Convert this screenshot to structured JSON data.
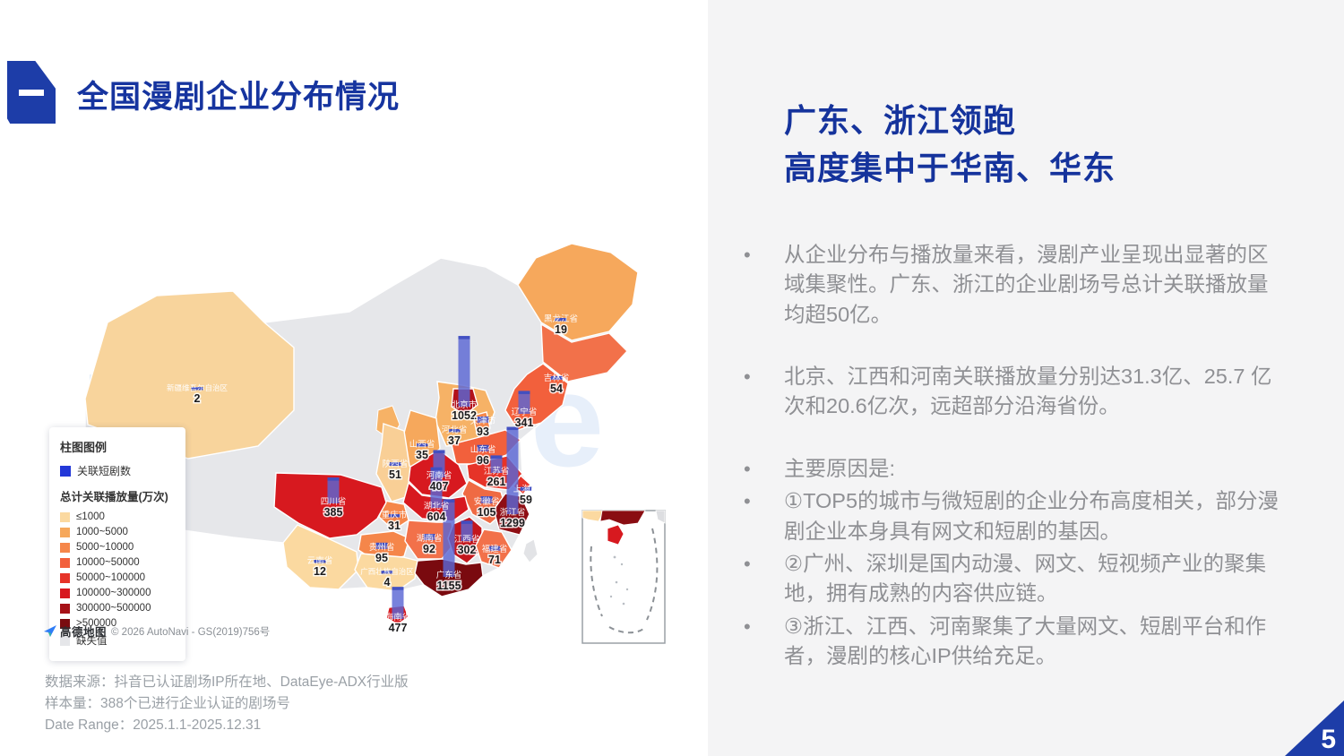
{
  "slide": {
    "title": "全国漫剧企业分布情况",
    "page_number": "5",
    "accent_color": "#1d3da8"
  },
  "right_panel": {
    "heading_line1": "广东、浙江领跑",
    "heading_line2": "高度集中于华南、华东",
    "bullets": [
      {
        "text": "从企业分布与播放量来看，漫剧产业呈现出显著的区域集聚性。广东、浙江的企业剧场号总计关联播放量均超50亿。",
        "spaced": true
      },
      {
        "text": "北京、江西和河南关联播放量分别达31.3亿、25.7 亿次和20.6亿次，远超部分沿海省份。",
        "spaced": true
      },
      {
        "text": "主要原因是:",
        "spaced": false
      },
      {
        "text": "①TOP5的城市与微短剧的企业分布高度相关，部分漫剧企业本身具有网文和短剧的基因。",
        "spaced": false
      },
      {
        "text": "②广州、深圳是国内动漫、网文、短视频产业的聚集地，拥有成熟的内容供应链。",
        "spaced": false
      },
      {
        "text": "③浙江、江西、河南聚集了大量网文、短剧平台和作者，漫剧的核心IP供给充足。",
        "spaced": false
      }
    ]
  },
  "map": {
    "watermark": "DataEye",
    "attribution": {
      "logo_label": "高德地图",
      "copyright": "© 2026 AutoNavi - GS(2019)756号"
    },
    "legend": {
      "bar_section_title": "柱图图例",
      "bar_item_label": "关联短剧数",
      "bar_item_color": "#2338d8",
      "choropleth_title": "总计关联播放量(万次)",
      "classes": [
        {
          "label": "≤1000",
          "color": "#fbd9a0"
        },
        {
          "label": "1000~5000",
          "color": "#f6a85c"
        },
        {
          "label": "5000~10000",
          "color": "#f5864a"
        },
        {
          "label": "10000~50000",
          "color": "#f2603c"
        },
        {
          "label": "50000~100000",
          "color": "#e63328"
        },
        {
          "label": "100000~300000",
          "color": "#d7191f"
        },
        {
          "label": "300000~500000",
          "color": "#a61117"
        },
        {
          "label": ">500000",
          "color": "#7a0c10"
        },
        {
          "label": "缺失值",
          "color": "#e5e6e9"
        }
      ]
    },
    "bar_color": "#5a66d4"
  },
  "chart_data": {
    "type": "heatmap",
    "subtype": "china-choropleth-with-bars",
    "title": "全国漫剧企业分布情况",
    "bar_metric": "关联短剧数",
    "choropleth_metric": "总计关联播放量(万次)",
    "legend_position": "left",
    "provinces": [
      {
        "name": "新疆维吾尔自治区",
        "value": 2,
        "fill": "#f8d49c"
      },
      {
        "name": "黑龙江省",
        "value": 19,
        "fill": "#f6a85c"
      },
      {
        "name": "吉林省",
        "value": 54,
        "fill": "#f2714a"
      },
      {
        "name": "辽宁省",
        "value": 341,
        "fill": "#f2603c"
      },
      {
        "name": "河北省",
        "value": 37,
        "fill": "#f6b266"
      },
      {
        "name": "北京市",
        "value": 1052,
        "fill": "#b3121a"
      },
      {
        "name": "天津市",
        "value": 93,
        "fill": "#f5864a"
      },
      {
        "name": "山西省",
        "value": 35,
        "fill": "#f6a85c"
      },
      {
        "name": "山东省",
        "value": 96,
        "fill": "#f2603c"
      },
      {
        "name": "陕西省",
        "value": 51,
        "fill": "#f9cf96"
      },
      {
        "name": "河南省",
        "value": 407,
        "fill": "#d7191f"
      },
      {
        "name": "江苏省",
        "value": 261,
        "fill": "#e63328"
      },
      {
        "name": "安徽省",
        "value": 105,
        "fill": "#ef6a43"
      },
      {
        "name": "上海市",
        "value": 59,
        "fill": "#e63328"
      },
      {
        "name": "浙江省",
        "value": 1299,
        "fill": "#8f0e14"
      },
      {
        "name": "湖北省",
        "value": 604,
        "fill": "#d7191f"
      },
      {
        "name": "重庆市",
        "value": 31,
        "fill": "#f5864a"
      },
      {
        "name": "四川省",
        "value": 385,
        "fill": "#d7191f"
      },
      {
        "name": "贵州省",
        "value": 95,
        "fill": "#f5864a"
      },
      {
        "name": "湖南省",
        "value": 92,
        "fill": "#f2714a"
      },
      {
        "name": "江西省",
        "value": 302,
        "fill": "#c3161c"
      },
      {
        "name": "福建省",
        "value": 71,
        "fill": "#f2714a"
      },
      {
        "name": "云南省",
        "value": 12,
        "fill": "#fbd9a0"
      },
      {
        "name": "广西壮族自治区",
        "value": 4,
        "fill": "#fbd9a0"
      },
      {
        "name": "广东省",
        "value": 1155,
        "fill": "#7a0a0f"
      },
      {
        "name": "海南省",
        "value": 477,
        "fill": "#d7191f"
      }
    ]
  },
  "footer": {
    "source": "数据来源：抖音已认证剧场IP所在地、DataEye-ADX行业版",
    "sample": "样本量：388个已进行企业认证的剧场号",
    "date_range": "Date Range：2025.1.1-2025.12.31"
  }
}
